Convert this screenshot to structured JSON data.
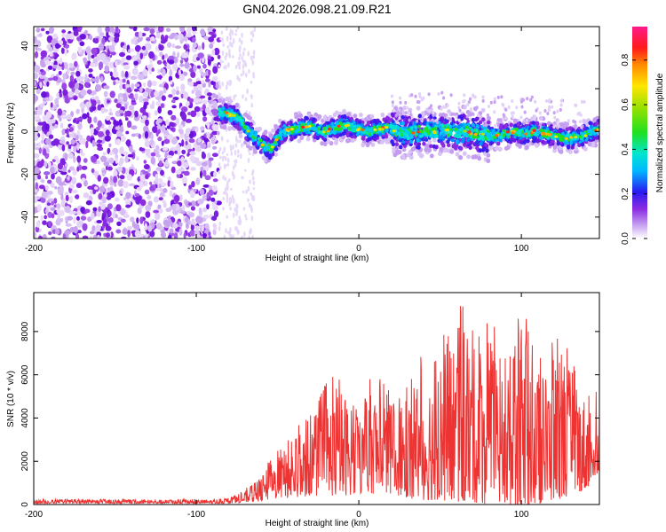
{
  "title": "GN04.2026.098.21.09.R21",
  "chart_data": [
    {
      "type": "heatmap",
      "name": "spectrogram",
      "xlabel": "Height of straight line (km)",
      "ylabel": "Frequency (Hz)",
      "xlim": [
        -200,
        148
      ],
      "ylim": [
        -50,
        49
      ],
      "xticks": [
        -200,
        -100,
        0,
        100
      ],
      "yticks": [
        -40,
        -20,
        0,
        20,
        40
      ],
      "noise_region_x": [
        -200,
        -86
      ],
      "ridge": {
        "x": [
          -86,
          -80,
          -74,
          -68,
          -63,
          -58,
          -54,
          -50,
          -46,
          -40,
          -34,
          -28,
          -22,
          -16,
          -10,
          -4,
          0,
          6,
          12,
          18,
          24,
          30,
          36,
          42,
          48,
          54,
          60,
          66,
          72,
          78,
          84,
          90,
          96,
          102,
          108,
          114,
          120,
          126,
          132,
          138,
          144,
          148
        ],
        "freq": [
          9,
          8,
          6,
          0,
          -3,
          -7,
          -8,
          -3,
          0,
          1,
          2,
          2,
          0,
          1,
          3,
          2,
          1,
          0,
          1,
          2,
          0,
          -1,
          0,
          0,
          0,
          1,
          -1,
          0,
          -1,
          -2,
          -2,
          -1,
          0,
          -1,
          0,
          -1,
          -2,
          -3,
          -3,
          -2,
          0,
          1
        ]
      }
    },
    {
      "type": "colorbar",
      "label": "Normalized spectral amplitude",
      "range": [
        0.0,
        0.95
      ],
      "ticks": [
        "0.0",
        "0.2",
        "0.4",
        "0.6",
        "0.8"
      ],
      "tick_values": [
        0.0,
        0.2,
        0.4,
        0.6,
        0.8
      ]
    },
    {
      "type": "line",
      "name": "snr",
      "color": "#ee3333",
      "xlabel": "Height of straight line (km)",
      "ylabel": "SNR (10 * v/v)",
      "xlim": [
        -200,
        148
      ],
      "ylim": [
        0,
        9800
      ],
      "xticks": [
        -200,
        -100,
        0,
        100
      ],
      "yticks": [
        0,
        2000,
        4000,
        6000,
        8000
      ],
      "envelope": {
        "x": [
          -200,
          -150,
          -100,
          -80,
          -70,
          -60,
          -50,
          -40,
          -30,
          -20,
          -10,
          0,
          10,
          20,
          30,
          40,
          50,
          60,
          70,
          80,
          90,
          100,
          110,
          120,
          130,
          140,
          148
        ],
        "max": [
          250,
          250,
          250,
          300,
          700,
          1500,
          2600,
          3500,
          4100,
          5800,
          6300,
          4600,
          6400,
          5300,
          5700,
          7300,
          7500,
          9600,
          8500,
          8600,
          7900,
          9700,
          6700,
          8000,
          7300,
          5600,
          5700
        ],
        "min": [
          50,
          50,
          50,
          50,
          100,
          150,
          300,
          300,
          400,
          400,
          400,
          500,
          500,
          500,
          300,
          200,
          200,
          100,
          100,
          0,
          0,
          0,
          0,
          200,
          400,
          700,
          1500
        ]
      }
    }
  ]
}
